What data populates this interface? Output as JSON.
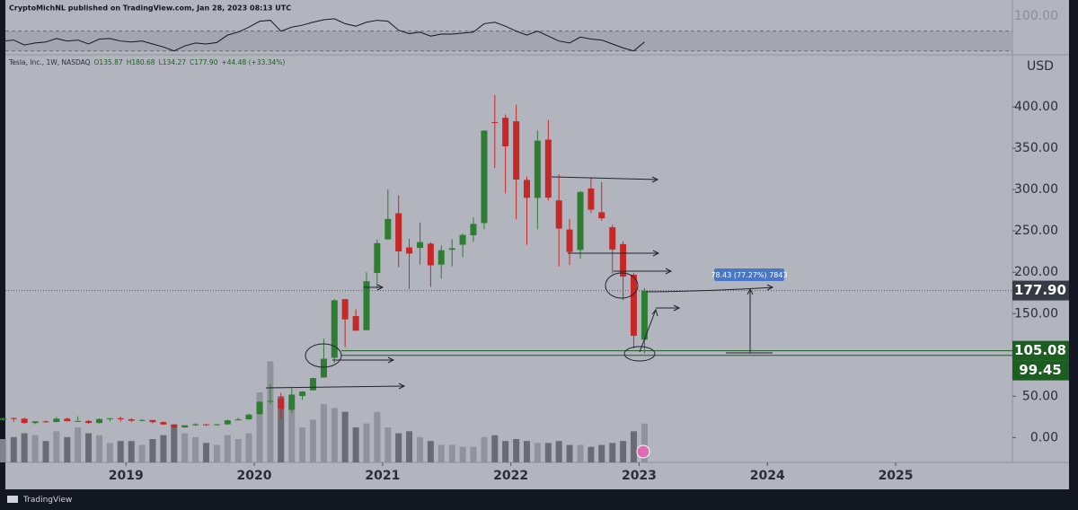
{
  "chart_data": {
    "type": "candlestick",
    "header": "CryptoMichNL published on TradingView.com, Jan 28, 2023 08:13 UTC",
    "legend": [
      "Tesla, Inc., 1W, NASDAQ",
      "O135.87",
      "H180.68",
      "L134.27",
      "C177.90",
      "+44.48 (+33.34%)"
    ],
    "axis_unit": "USD",
    "brand": "TradingView",
    "up_color": "#2e7d32",
    "down_color": "#c62828",
    "x": [
      2018.042,
      2018.125,
      2018.208,
      2018.292,
      2018.375,
      2018.458,
      2018.542,
      2018.625,
      2018.708,
      2018.792,
      2018.875,
      2018.958,
      2019.042,
      2019.125,
      2019.208,
      2019.292,
      2019.375,
      2019.458,
      2019.542,
      2019.625,
      2019.708,
      2019.792,
      2019.875,
      2019.958,
      2020.042,
      2020.125,
      2020.208,
      2020.292,
      2020.375,
      2020.458,
      2020.542,
      2020.625,
      2020.708,
      2020.792,
      2020.875,
      2020.958,
      2021.042,
      2021.125,
      2021.208,
      2021.292,
      2021.375,
      2021.458,
      2021.542,
      2021.625,
      2021.708,
      2021.792,
      2021.875,
      2021.958,
      2022.042,
      2022.125,
      2022.208,
      2022.292,
      2022.375,
      2022.458,
      2022.542,
      2022.625,
      2022.708,
      2022.792,
      2022.875,
      2022.958,
      2023.042
    ],
    "open": [
      21.4,
      23.6,
      22.9,
      17.7,
      19.6,
      18.9,
      22.9,
      19.9,
      20.1,
      17.7,
      22.5,
      23.4,
      22.2,
      20.5,
      21.3,
      18.7,
      15.9,
      12.3,
      14.9,
      16.1,
      15.0,
      16.1,
      20.9,
      22.0,
      28.3,
      43.4,
      47.4,
      33.6,
      50.3,
      57.2,
      72.7,
      96.6,
      167.4,
      147.0,
      130.0,
      199.2,
      239.8,
      271.4,
      230.0,
      229.5,
      234.6,
      209.3,
      227.2,
      233.3,
      244.7,
      259.5,
      381.7,
      386.9,
      382.6,
      311.7,
      289.9,
      360.4,
      286.9,
      251.7,
      227.0,
      301.3,
      272.6,
      254.5,
      234.1,
      197.1,
      118.5
    ],
    "high": [
      24.0,
      24.3,
      24.0,
      20.0,
      20.8,
      24.9,
      24.2,
      25.8,
      21.3,
      23.2,
      23.6,
      25.2,
      23.3,
      22.5,
      21.5,
      19.7,
      16.4,
      15.0,
      17.3,
      16.3,
      16.4,
      21.8,
      24.2,
      29.0,
      43.5,
      64.6,
      54.2,
      59.8,
      56.4,
      72.5,
      119.7,
      167.5,
      167.5,
      155.3,
      200.0,
      239.6,
      300.1,
      293.0,
      240.4,
      260.3,
      236.3,
      232.5,
      240.0,
      246.8,
      266.3,
      371.7,
      414.5,
      390.9,
      402.7,
      315.7,
      371.6,
      384.3,
      318.5,
      264.2,
      298.3,
      314.7,
      309.0,
      257.5,
      237.4,
      198.9,
      180.7
    ],
    "low": [
      20.5,
      19.0,
      16.5,
      16.3,
      18.0,
      18.5,
      19.6,
      19.5,
      16.7,
      16.9,
      19.3,
      19.4,
      18.6,
      19.7,
      17.3,
      15.2,
      11.8,
      11.9,
      14.2,
      14.1,
      14.6,
      15.3,
      20.9,
      22.0,
      27.9,
      40.8,
      23.4,
      30.2,
      45.5,
      57.0,
      72.6,
      90.3,
      109.5,
      133.4,
      130.0,
      180.4,
      239.1,
      206.3,
      179.8,
      209.3,
      182.3,
      192.6,
      207.1,
      218.0,
      236.8,
      252.1,
      326.2,
      295.4,
      264.0,
      233.3,
      252.0,
      286.9,
      206.9,
      208.7,
      216.2,
      271.8,
      262.5,
      198.6,
      166.2,
      108.2,
      101.8
    ],
    "close": [
      23.6,
      22.9,
      17.7,
      19.6,
      18.9,
      22.9,
      19.9,
      20.1,
      17.7,
      22.5,
      23.4,
      22.2,
      20.5,
      21.3,
      18.7,
      15.9,
      12.3,
      14.9,
      16.1,
      15.0,
      16.1,
      20.9,
      22.0,
      27.9,
      43.4,
      44.5,
      34.9,
      52.1,
      55.7,
      72.0,
      95.4,
      166.1,
      143.0,
      129.3,
      189.2,
      235.2,
      264.5,
      225.2,
      222.6,
      236.5,
      208.4,
      226.6,
      229.1,
      245.2,
      258.5,
      371.3,
      381.6,
      352.3,
      312.2,
      290.1,
      359.2,
      290.3,
      252.8,
      224.5,
      297.1,
      275.6,
      265.3,
      227.5,
      194.7,
      123.2,
      177.9
    ],
    "volume": [
      600,
      650,
      750,
      700,
      550,
      800,
      650,
      900,
      750,
      700,
      500,
      550,
      550,
      450,
      600,
      700,
      900,
      750,
      650,
      500,
      450,
      700,
      600,
      750,
      1800,
      2600,
      1700,
      1400,
      900,
      1100,
      1500,
      1400,
      1300,
      900,
      1000,
      1300,
      900,
      750,
      800,
      650,
      550,
      450,
      450,
      400,
      400,
      650,
      700,
      550,
      600,
      550,
      500,
      500,
      550,
      450,
      450,
      400,
      450,
      500,
      550,
      800,
      1000
    ],
    "volume_lim": [
      0,
      3000
    ],
    "xlim": [
      2018.06,
      2025.91
    ],
    "xticks": [
      2019,
      2020,
      2021,
      2022,
      2023,
      2024,
      2025
    ],
    "ylim": [
      -30,
      462
    ],
    "yticks": [
      {
        "value": 0,
        "label": "0.00"
      },
      {
        "value": 50,
        "label": "50.00"
      },
      {
        "value": 100,
        "label": "100.00"
      },
      {
        "value": 150,
        "label": "150.00"
      },
      {
        "value": 200,
        "label": "200.00"
      },
      {
        "value": 250,
        "label": "250.00"
      },
      {
        "value": 300,
        "label": "300.00"
      },
      {
        "value": 350,
        "label": "350.00"
      },
      {
        "value": 400,
        "label": "400.00"
      }
    ],
    "price_labels": [
      {
        "value": 177.9,
        "label": "177.90",
        "color": "#363a45"
      },
      {
        "value": 105.08,
        "label": "105.08",
        "color": "#1b5e20"
      },
      {
        "value": 99.45,
        "label": "99.45",
        "color": "#1b5e20"
      }
    ],
    "measure_label": "78.43 (77.27%) 7843",
    "indicator": {
      "values": [
        50,
        52,
        42,
        46,
        48,
        55,
        50,
        52,
        44,
        54,
        55,
        50,
        48,
        50,
        44,
        38,
        30,
        40,
        46,
        44,
        47,
        62,
        68,
        78,
        90,
        92,
        70,
        78,
        82,
        88,
        93,
        95,
        85,
        80,
        88,
        92,
        90,
        72,
        65,
        68,
        60,
        64,
        64,
        66,
        68,
        85,
        88,
        80,
        70,
        62,
        70,
        60,
        50,
        46,
        58,
        54,
        52,
        44,
        36,
        30,
        48
      ],
      "ylim": [
        24,
        133
      ],
      "band": [
        30,
        70
      ],
      "ticks": [
        {
          "value": 100,
          "label": "100.00"
        }
      ]
    }
  }
}
